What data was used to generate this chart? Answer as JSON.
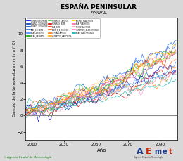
{
  "title": "ESPAÑA PENINSULAR",
  "subtitle": "ANUAL",
  "xlabel": "Año",
  "ylabel": "Cambio de la temperatura mínima (°C)",
  "xlim": [
    2006,
    2101
  ],
  "ylim": [
    -3,
    12
  ],
  "yticks": [
    -2,
    0,
    2,
    4,
    6,
    8,
    10
  ],
  "xticks": [
    2010,
    2030,
    2050,
    2070,
    2090
  ],
  "x_start": 2006,
  "x_end": 2100,
  "bg_color": "#d8d8d8",
  "plot_bg": "#ffffff",
  "hline_y": 0,
  "hline_color": "#888888",
  "footer_text": "© Agencia Estatal de Meteorología",
  "series_colors": [
    "#0000dd",
    "#0033bb",
    "#0055cc",
    "#2266ff",
    "#4488ff",
    "#00aa00",
    "#33cc33",
    "#cc0000",
    "#ee2200",
    "#ff5500",
    "#ff7700",
    "#ffaa00",
    "#ffcc00",
    "#ff66aa",
    "#ffaabb",
    "#ff88cc",
    "#00aaaa",
    "#33bbbb"
  ],
  "n_series": 18,
  "seed": 42
}
